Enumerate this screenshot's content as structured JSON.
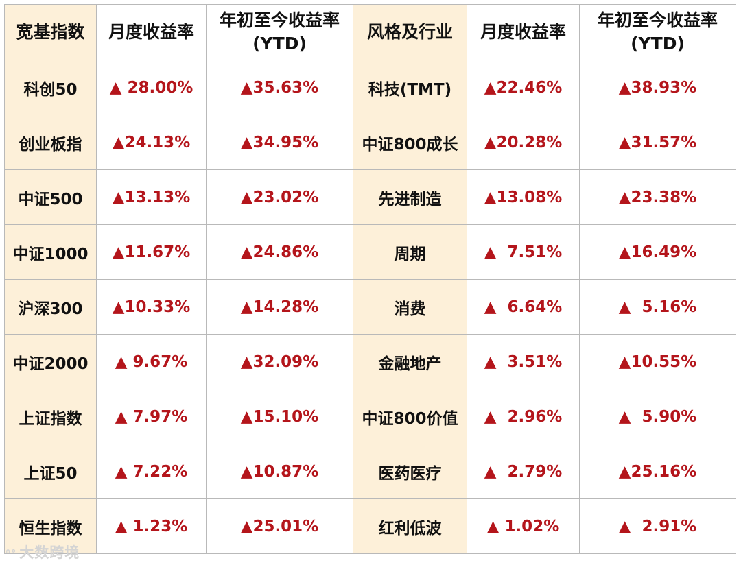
{
  "header": {
    "col1": "宽基指数",
    "col2": "月度收益率",
    "col3_line1": "年初至今收益率",
    "col3_line2": "(YTD)",
    "col4": "风格及行业",
    "col5": "月度收益率",
    "col6_line1": "年初至今收益率",
    "col6_line2": "(YTD)"
  },
  "rows": [
    {
      "broad": "科创50",
      "broad_monthly": "▲ 28.00%",
      "broad_ytd": "▲35.63%",
      "style": "科技(TMT)",
      "style_monthly": "▲22.46%",
      "style_ytd": "▲38.93%"
    },
    {
      "broad": "创业板指",
      "broad_monthly": "▲24.13%",
      "broad_ytd": "▲34.95%",
      "style": "中证800成长",
      "style_monthly": "▲20.28%",
      "style_ytd": "▲31.57%"
    },
    {
      "broad": "中证500",
      "broad_monthly": "▲13.13%",
      "broad_ytd": "▲23.02%",
      "style": "先进制造",
      "style_monthly": "▲13.08%",
      "style_ytd": "▲23.38%"
    },
    {
      "broad": "中证1000",
      "broad_monthly": "▲11.67%",
      "broad_ytd": "▲24.86%",
      "style": "周期",
      "style_monthly": "▲  7.51%",
      "style_ytd": "▲16.49%"
    },
    {
      "broad": "沪深300",
      "broad_monthly": "▲10.33%",
      "broad_ytd": "▲14.28%",
      "style": "消费",
      "style_monthly": "▲  6.64%",
      "style_ytd": "▲  5.16%"
    },
    {
      "broad": "中证2000",
      "broad_monthly": "▲ 9.67%",
      "broad_ytd": "▲32.09%",
      "style": "金融地产",
      "style_monthly": "▲  3.51%",
      "style_ytd": "▲10.55%"
    },
    {
      "broad": "上证指数",
      "broad_monthly": "▲ 7.97%",
      "broad_ytd": "▲15.10%",
      "style": "中证800价值",
      "style_monthly": "▲  2.96%",
      "style_ytd": "▲  5.90%"
    },
    {
      "broad": "上证50",
      "broad_monthly": "▲ 7.22%",
      "broad_ytd": "▲10.87%",
      "style": "医药医疗",
      "style_monthly": "▲  2.79%",
      "style_ytd": "▲25.16%"
    },
    {
      "broad": "恒生指数",
      "broad_monthly": "▲ 1.23%",
      "broad_ytd": "▲25.01%",
      "style": "红利低波",
      "style_monthly": "▲ 1.02%",
      "style_ytd": "▲  2.91%"
    }
  ],
  "watermark": {
    "logo": "ᐢᐤ",
    "text": "大数跨境"
  },
  "colors": {
    "header_beige": "#fdf0d9",
    "value_red": "#b4151b",
    "border": "#b9b9b9"
  }
}
